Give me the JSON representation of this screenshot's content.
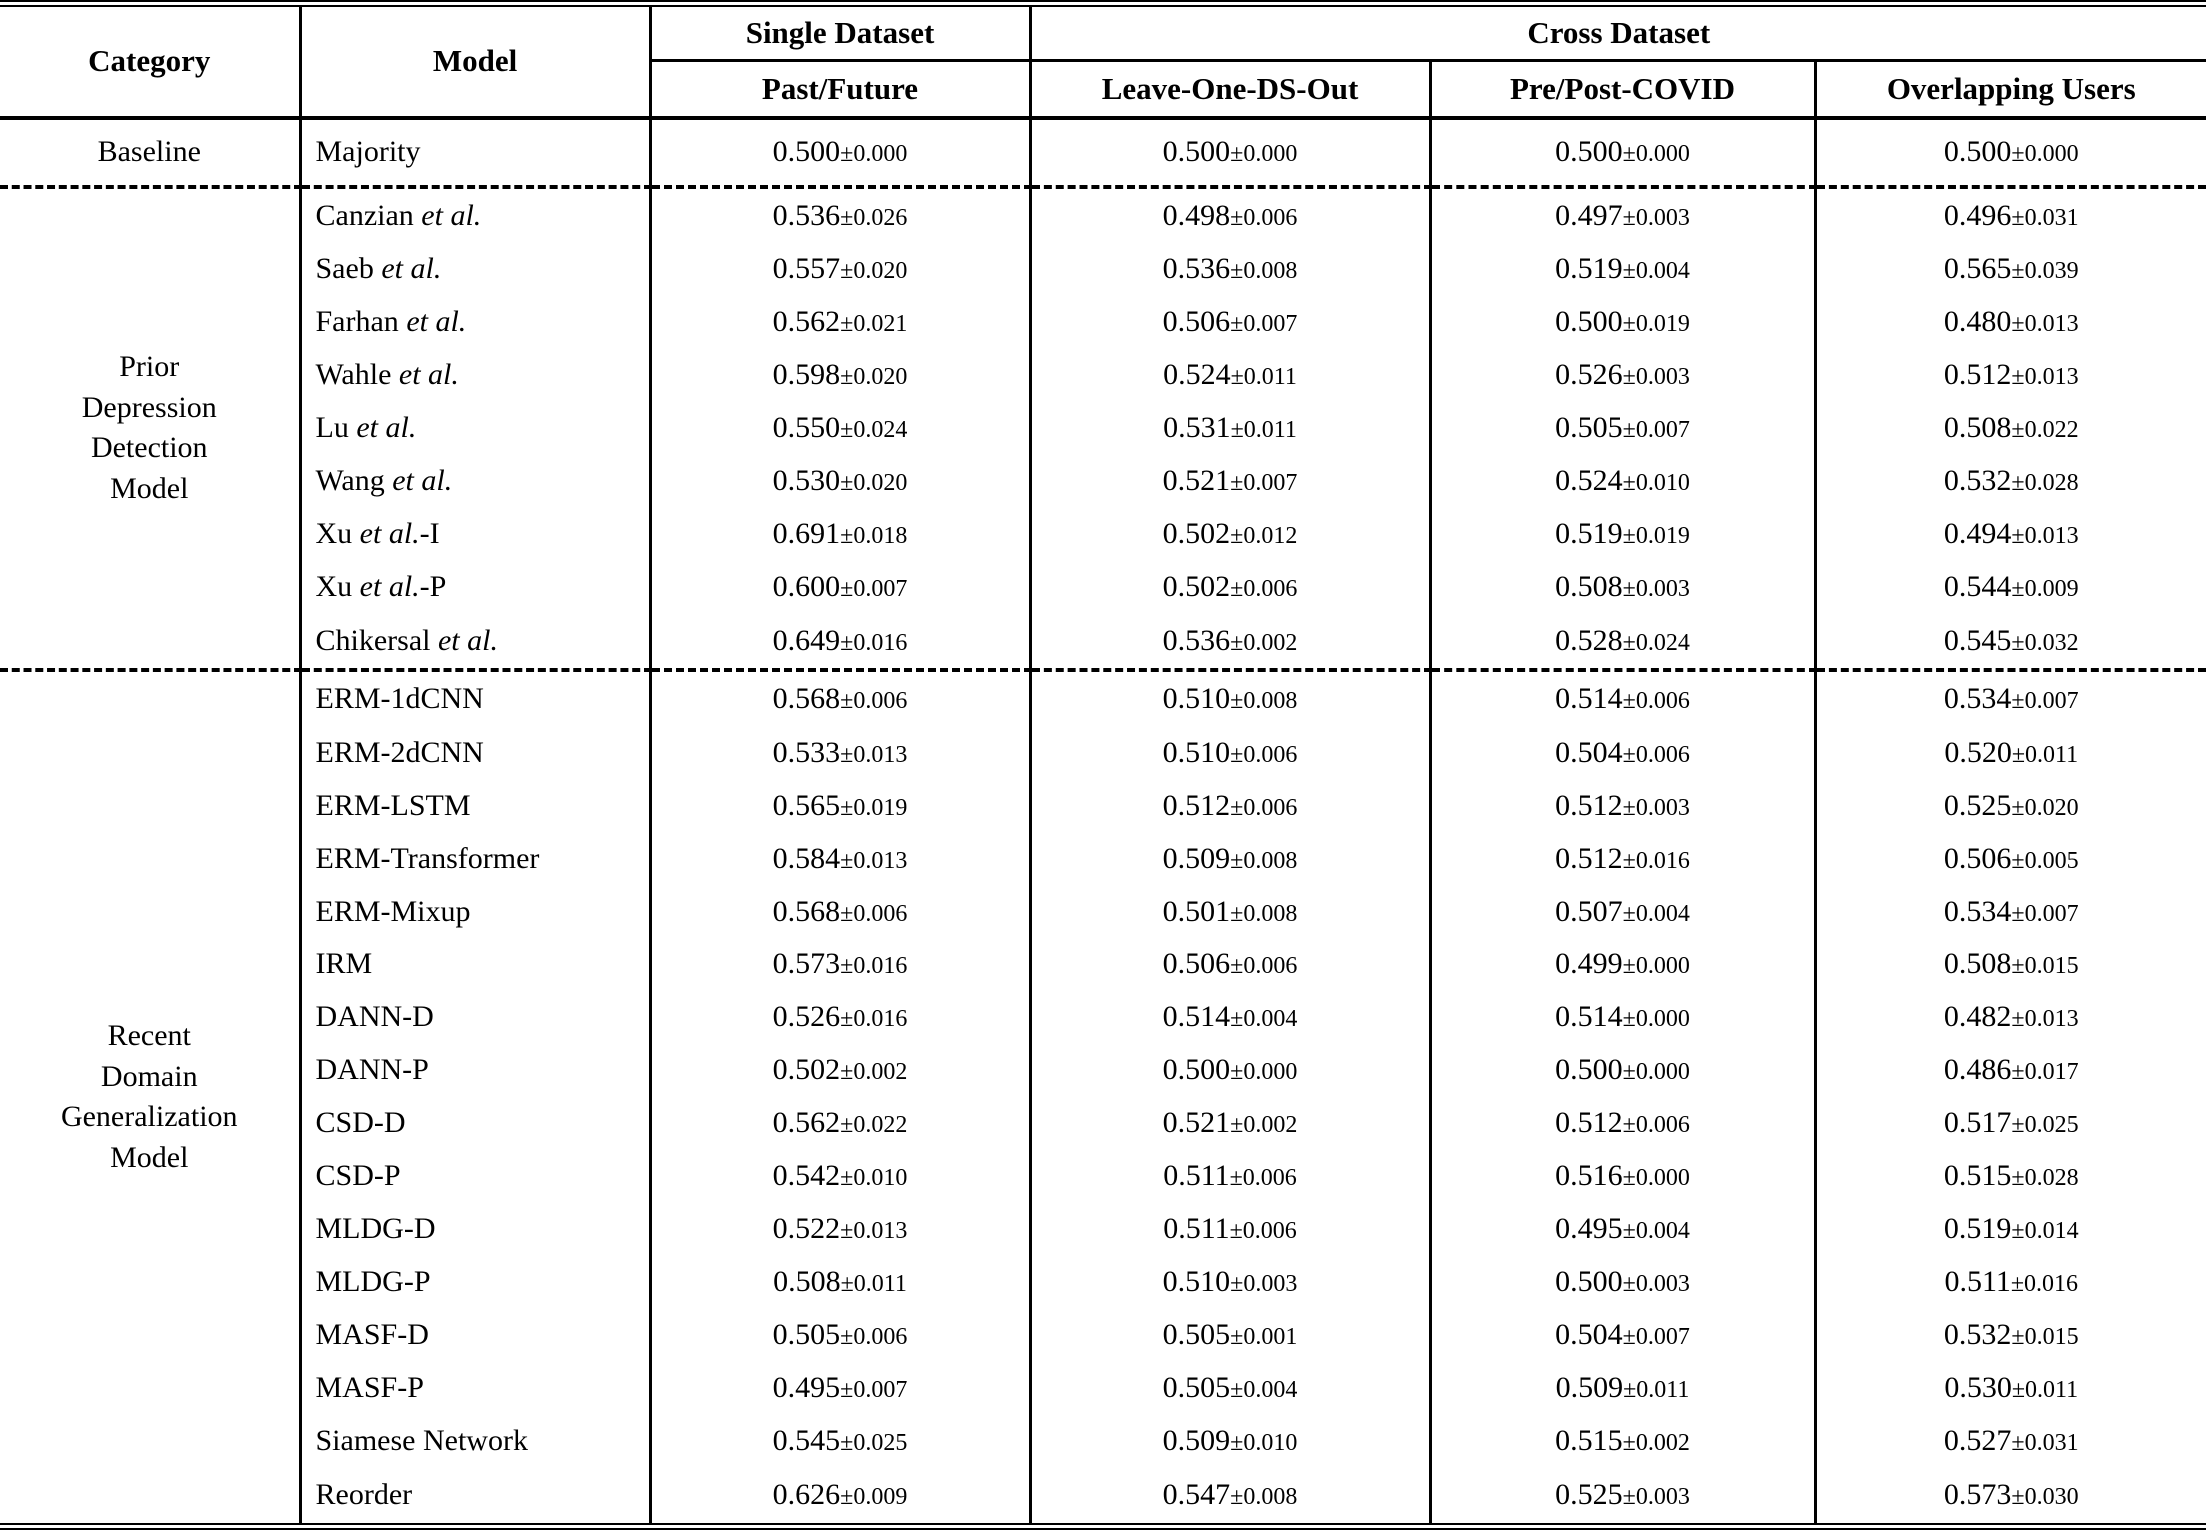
{
  "table": {
    "header": {
      "category": "Category",
      "model": "Model",
      "single_dataset": "Single Dataset",
      "cross_dataset": "Cross Dataset",
      "subcolumns": [
        "Past/Future",
        "Leave-One-DS-Out",
        "Pre/Post-COVID",
        "Overlapping Users"
      ]
    },
    "sections": [
      {
        "category": "Baseline",
        "rows": [
          {
            "model": {
              "pre": "Majority",
              "italic": "",
              "post": ""
            },
            "values": [
              "0.500±0.000",
              "0.500±0.000",
              "0.500±0.000",
              "0.500±0.000"
            ]
          }
        ]
      },
      {
        "category": "Prior\nDepression\nDetection\nModel",
        "rows": [
          {
            "model": {
              "pre": "Canzian ",
              "italic": "et al.",
              "post": ""
            },
            "values": [
              "0.536±0.026",
              "0.498±0.006",
              "0.497±0.003",
              "0.496±0.031"
            ]
          },
          {
            "model": {
              "pre": "Saeb ",
              "italic": "et al.",
              "post": ""
            },
            "values": [
              "0.557±0.020",
              "0.536±0.008",
              "0.519±0.004",
              "0.565±0.039"
            ]
          },
          {
            "model": {
              "pre": "Farhan ",
              "italic": "et al.",
              "post": ""
            },
            "values": [
              "0.562±0.021",
              "0.506±0.007",
              "0.500±0.019",
              "0.480±0.013"
            ]
          },
          {
            "model": {
              "pre": "Wahle ",
              "italic": "et al.",
              "post": ""
            },
            "values": [
              "0.598±0.020",
              "0.524±0.011",
              "0.526±0.003",
              "0.512±0.013"
            ]
          },
          {
            "model": {
              "pre": "Lu ",
              "italic": "et al.",
              "post": ""
            },
            "values": [
              "0.550±0.024",
              "0.531±0.011",
              "0.505±0.007",
              "0.508±0.022"
            ]
          },
          {
            "model": {
              "pre": "Wang ",
              "italic": "et al.",
              "post": ""
            },
            "values": [
              "0.530±0.020",
              "0.521±0.007",
              "0.524±0.010",
              "0.532±0.028"
            ]
          },
          {
            "model": {
              "pre": "Xu ",
              "italic": "et al.",
              "post": "-I"
            },
            "values": [
              "0.691±0.018",
              "0.502±0.012",
              "0.519±0.019",
              "0.494±0.013"
            ]
          },
          {
            "model": {
              "pre": "Xu ",
              "italic": "et al.",
              "post": "-P"
            },
            "values": [
              "0.600±0.007",
              "0.502±0.006",
              "0.508±0.003",
              "0.544±0.009"
            ]
          },
          {
            "model": {
              "pre": "Chikersal ",
              "italic": "et al.",
              "post": ""
            },
            "values": [
              "0.649±0.016",
              "0.536±0.002",
              "0.528±0.024",
              "0.545±0.032"
            ]
          }
        ]
      },
      {
        "category": "Recent\nDomain\nGeneralization\nModel",
        "rows": [
          {
            "model": {
              "pre": "ERM-1dCNN",
              "italic": "",
              "post": ""
            },
            "values": [
              "0.568±0.006",
              "0.510±0.008",
              "0.514±0.006",
              "0.534±0.007"
            ]
          },
          {
            "model": {
              "pre": "ERM-2dCNN",
              "italic": "",
              "post": ""
            },
            "values": [
              "0.533±0.013",
              "0.510±0.006",
              "0.504±0.006",
              "0.520±0.011"
            ]
          },
          {
            "model": {
              "pre": "ERM-LSTM",
              "italic": "",
              "post": ""
            },
            "values": [
              "0.565±0.019",
              "0.512±0.006",
              "0.512±0.003",
              "0.525±0.020"
            ]
          },
          {
            "model": {
              "pre": "ERM-Transformer",
              "italic": "",
              "post": ""
            },
            "values": [
              "0.584±0.013",
              "0.509±0.008",
              "0.512±0.016",
              "0.506±0.005"
            ]
          },
          {
            "model": {
              "pre": "ERM-Mixup",
              "italic": "",
              "post": ""
            },
            "values": [
              "0.568±0.006",
              "0.501±0.008",
              "0.507±0.004",
              "0.534±0.007"
            ]
          },
          {
            "model": {
              "pre": "IRM",
              "italic": "",
              "post": ""
            },
            "values": [
              "0.573±0.016",
              "0.506±0.006",
              "0.499±0.000",
              "0.508±0.015"
            ]
          },
          {
            "model": {
              "pre": "DANN-D",
              "italic": "",
              "post": ""
            },
            "values": [
              "0.526±0.016",
              "0.514±0.004",
              "0.514±0.000",
              "0.482±0.013"
            ]
          },
          {
            "model": {
              "pre": "DANN-P",
              "italic": "",
              "post": ""
            },
            "values": [
              "0.502±0.002",
              "0.500±0.000",
              "0.500±0.000",
              "0.486±0.017"
            ]
          },
          {
            "model": {
              "pre": "CSD-D",
              "italic": "",
              "post": ""
            },
            "values": [
              "0.562±0.022",
              "0.521±0.002",
              "0.512±0.006",
              "0.517±0.025"
            ]
          },
          {
            "model": {
              "pre": "CSD-P",
              "italic": "",
              "post": ""
            },
            "values": [
              "0.542±0.010",
              "0.511±0.006",
              "0.516±0.000",
              "0.515±0.028"
            ]
          },
          {
            "model": {
              "pre": "MLDG-D",
              "italic": "",
              "post": ""
            },
            "values": [
              "0.522±0.013",
              "0.511±0.006",
              "0.495±0.004",
              "0.519±0.014"
            ]
          },
          {
            "model": {
              "pre": "MLDG-P",
              "italic": "",
              "post": ""
            },
            "values": [
              "0.508±0.011",
              "0.510±0.003",
              "0.500±0.003",
              "0.511±0.016"
            ]
          },
          {
            "model": {
              "pre": "MASF-D",
              "italic": "",
              "post": ""
            },
            "values": [
              "0.505±0.006",
              "0.505±0.001",
              "0.504±0.007",
              "0.532±0.015"
            ]
          },
          {
            "model": {
              "pre": "MASF-P",
              "italic": "",
              "post": ""
            },
            "values": [
              "0.495±0.007",
              "0.505±0.004",
              "0.509±0.011",
              "0.530±0.011"
            ]
          },
          {
            "model": {
              "pre": "Siamese Network",
              "italic": "",
              "post": ""
            },
            "values": [
              "0.545±0.025",
              "0.509±0.010",
              "0.515±0.002",
              "0.527±0.031"
            ]
          },
          {
            "model": {
              "pre": "Reorder",
              "italic": "",
              "post": ""
            },
            "values": [
              "0.626±0.009",
              "0.547±0.008",
              "0.525±0.003",
              "0.573±0.030"
            ]
          }
        ]
      }
    ]
  }
}
